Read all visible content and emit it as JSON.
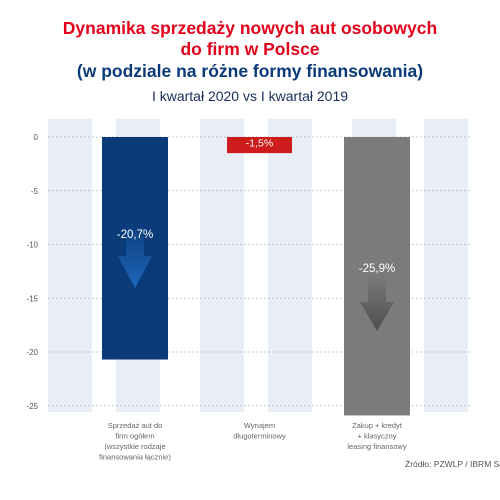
{
  "titles": {
    "line1": "Dynamika sprzedaży nowych aut osobowych",
    "line2": "do firm w Polsce",
    "line3": "(w podziale na różne formy finansowania)",
    "subtitle": "I kwartał 2020 vs I kwartał 2019"
  },
  "source": "Źródło: PZWLP / IBRM Samar",
  "colors": {
    "bar1": "#0a3a78",
    "bar2": "#cc1c1c",
    "bar3": "#7b7b7b",
    "arrow1": "#1f66b8",
    "arrow3": "#4e4e4e",
    "band": "#e9eef5",
    "axis": "#555555"
  },
  "chart_data": {
    "type": "bar",
    "categories": [
      [
        "Sprzedaż aut do",
        "firm ogółem",
        "(wszystkie rodzaje",
        "finansowania łącznie)"
      ],
      [
        "Wynajem",
        "długoterminowy"
      ],
      [
        "Zakup + kredyt",
        "+ klasyczny",
        "leasing finansowy"
      ]
    ],
    "values": [
      -20.7,
      -1.5,
      -25.9
    ],
    "data_labels": [
      "-20,7%",
      "-1,5%",
      "-25,9%"
    ],
    "yticks": [
      0,
      -5,
      -10,
      -15,
      -20,
      -25
    ],
    "ylim": [
      -26.5,
      0.5
    ],
    "grid": false,
    "legend": "none"
  }
}
